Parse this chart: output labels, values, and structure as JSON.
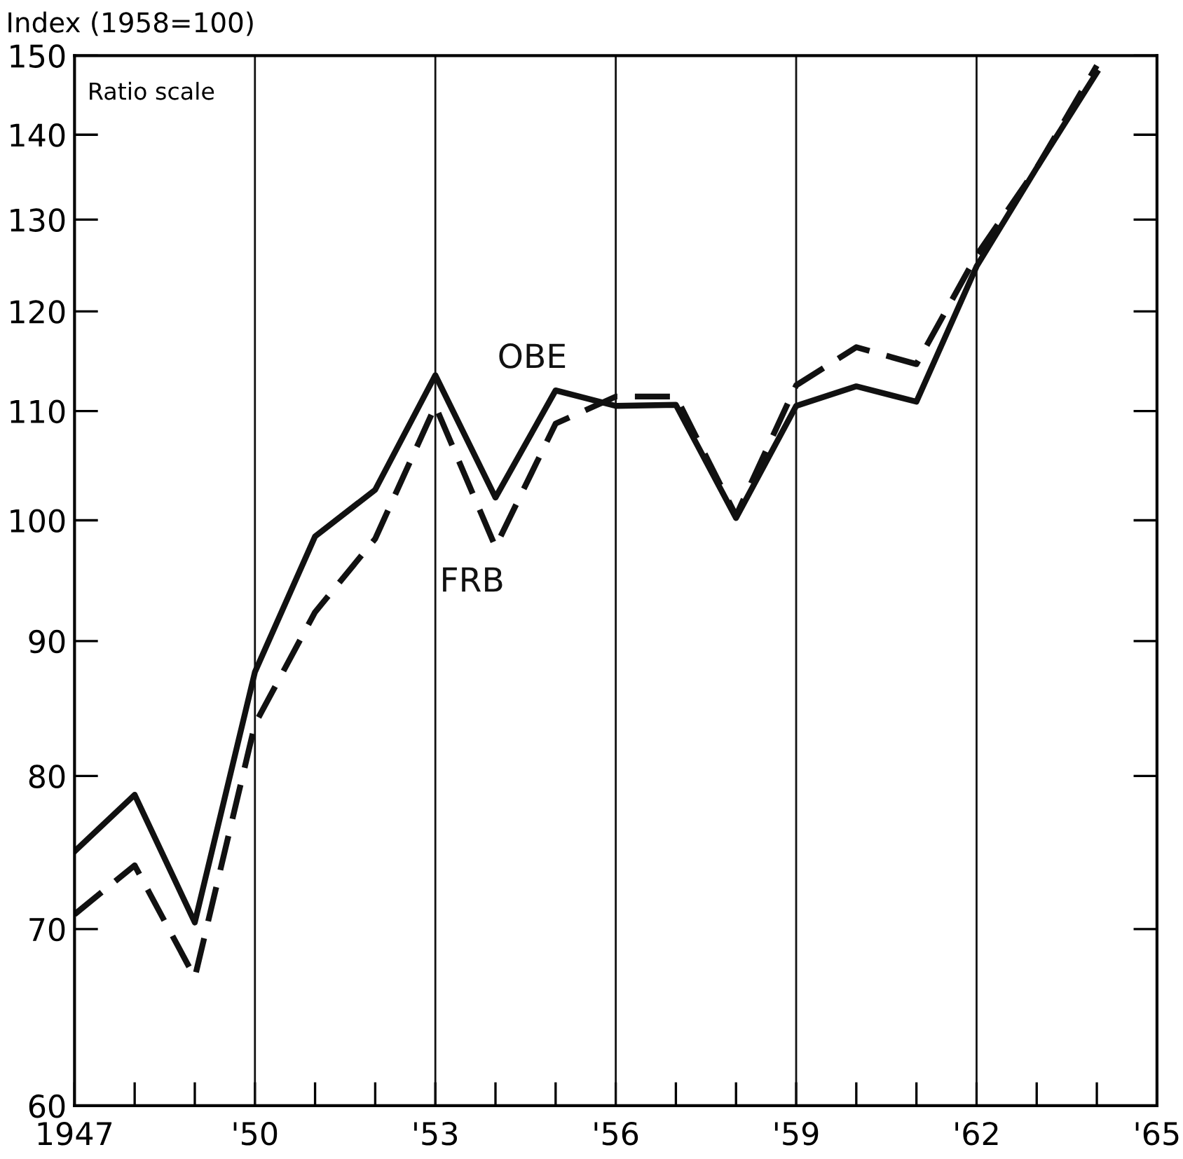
{
  "chart_data": {
    "type": "line",
    "ylabel": "Index (1958=100)",
    "annotations": [
      "Ratio scale"
    ],
    "log": "y",
    "x": [
      1947,
      1948,
      1949,
      1950,
      1951,
      1952,
      1953,
      1954,
      1955,
      1956,
      1957,
      1958,
      1959,
      1960,
      1961,
      1962,
      1963,
      1964
    ],
    "series": [
      {
        "name": "OBE",
        "color": "#111111",
        "line_style": "solid",
        "values": [
          74.9,
          78.7,
          70.4,
          87.6,
          98.6,
          102.7,
          113.5,
          102,
          112,
          110.5,
          110.6,
          100.2,
          110.5,
          112.4,
          110.9,
          124.8,
          136,
          147.8
        ]
      },
      {
        "name": "FRB",
        "color": "#111111",
        "line_style": "dashed",
        "values": [
          70.9,
          74,
          67.1,
          83.7,
          92.3,
          98.4,
          110.5,
          97.7,
          108.8,
          111.4,
          111.4,
          100.4,
          112.5,
          116.3,
          114.6,
          126,
          136,
          148.7
        ]
      }
    ],
    "xlim": [
      1947,
      1965
    ],
    "xticks": [
      {
        "value": 1947,
        "label": "1947"
      },
      {
        "value": 1950,
        "label": "'50"
      },
      {
        "value": 1953,
        "label": "'53"
      },
      {
        "value": 1956,
        "label": "'56"
      },
      {
        "value": 1959,
        "label": "'59"
      },
      {
        "value": 1962,
        "label": "'62"
      },
      {
        "value": 1965,
        "label": "'65"
      }
    ],
    "ylim": [
      60,
      150
    ],
    "yticks": [
      60,
      70,
      80,
      90,
      100,
      110,
      120,
      130,
      140,
      150
    ],
    "grid": "x",
    "legend": false
  }
}
